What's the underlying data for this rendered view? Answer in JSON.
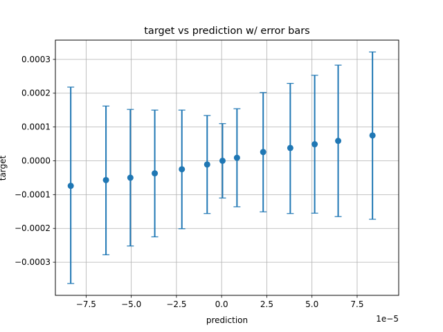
{
  "chart_data": {
    "type": "scatter",
    "title": "target vs prediction w/ error bars",
    "xlabel": "prediction",
    "ylabel": "target",
    "x_offset_text": "1e−5",
    "x_scale": 1e-05,
    "grid": true,
    "legend": "none",
    "xlim": [
      -9.2,
      9.8
    ],
    "ylim": [
      -0.000398,
      0.000357
    ],
    "x_ticks": [
      -7.5,
      -5.0,
      -2.5,
      0.0,
      2.5,
      5.0,
      7.5
    ],
    "x_tick_labels": [
      "−7.5",
      "−5.0",
      "−2.5",
      "0.0",
      "2.5",
      "5.0",
      "7.5"
    ],
    "y_ticks": [
      -0.0003,
      -0.0002,
      -0.0001,
      0.0,
      0.0001,
      0.0002,
      0.0003
    ],
    "y_tick_labels": [
      "−0.0003",
      "−0.0002",
      "−0.0001",
      "0.0000",
      "0.0001",
      "0.0002",
      "0.0003"
    ],
    "color": "#1f77b4",
    "series": [
      {
        "x": [
          -8.35,
          -6.4,
          -5.05,
          -3.7,
          -2.2,
          -0.8,
          0.05,
          0.85,
          2.3,
          3.8,
          5.15,
          6.45,
          8.35
        ],
        "y": [
          -7.4e-05,
          -5.7e-05,
          -5e-05,
          -3.7e-05,
          -2.5e-05,
          -1.1e-05,
          0.0,
          9e-06,
          2.6e-05,
          3.8e-05,
          4.9e-05,
          5.9e-05,
          7.5e-05
        ],
        "err_low": [
          -0.000363,
          -0.000278,
          -0.000252,
          -0.000225,
          -0.000201,
          -0.000156,
          -0.00011,
          -0.000136,
          -0.000151,
          -0.000156,
          -0.000155,
          -0.000165,
          -0.000173
        ],
        "err_high": [
          0.000218,
          0.000162,
          0.000152,
          0.00015,
          0.00015,
          0.000134,
          0.00011,
          0.000154,
          0.000202,
          0.000229,
          0.000253,
          0.000283,
          0.000322
        ]
      }
    ]
  }
}
